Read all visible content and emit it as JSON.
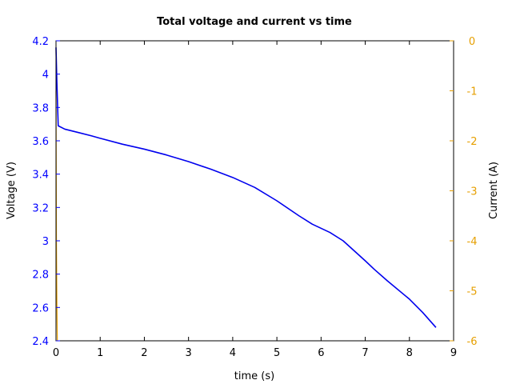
{
  "chart_data": {
    "type": "line",
    "title": "Total voltage and current vs time",
    "xlabel": "time (s)",
    "ylabel_left": "Voltage (V)",
    "ylabel_right": "Current (A)",
    "xlim": [
      0,
      9
    ],
    "ylim_left": [
      2.4,
      4.2
    ],
    "ylim_right": [
      -6,
      0
    ],
    "x_ticks": [
      "0",
      "1",
      "2",
      "3",
      "4",
      "5",
      "6",
      "7",
      "8",
      "9"
    ],
    "y_left_ticks": [
      "2.4",
      "2.6",
      "2.8",
      "3",
      "3.2",
      "3.4",
      "3.6",
      "3.8",
      "4",
      "4.2"
    ],
    "y_right_ticks": [
      "-6",
      "-5",
      "-4",
      "-3",
      "-2",
      "-1",
      "0"
    ],
    "grid": false,
    "colors": {
      "voltage": "#0000ee",
      "current": "#e69f00",
      "left_axis_text": "#0000ff",
      "right_axis_text": "#e69f00"
    },
    "series": [
      {
        "axis": "left",
        "x": [
          0.0,
          0.02,
          0.05,
          0.2,
          0.5,
          0.8,
          1.0,
          1.5,
          2.0,
          2.5,
          3.0,
          3.5,
          4.0,
          4.5,
          5.0,
          5.5,
          5.8,
          6.2,
          6.5,
          7.0,
          7.2,
          7.5,
          8.0,
          8.3,
          8.6
        ],
        "y": [
          4.16,
          3.95,
          3.69,
          3.67,
          3.65,
          3.63,
          3.615,
          3.58,
          3.55,
          3.515,
          3.475,
          3.43,
          3.38,
          3.32,
          3.24,
          3.15,
          3.1,
          3.05,
          3.0,
          2.88,
          2.83,
          2.76,
          2.65,
          2.57,
          2.48
        ]
      },
      {
        "axis": "right",
        "x": [
          0.0,
          0.005,
          0.01,
          0.02,
          0.03
        ],
        "y": [
          -1.0,
          -2.5,
          -4.0,
          -5.2,
          -6.0
        ]
      }
    ]
  }
}
